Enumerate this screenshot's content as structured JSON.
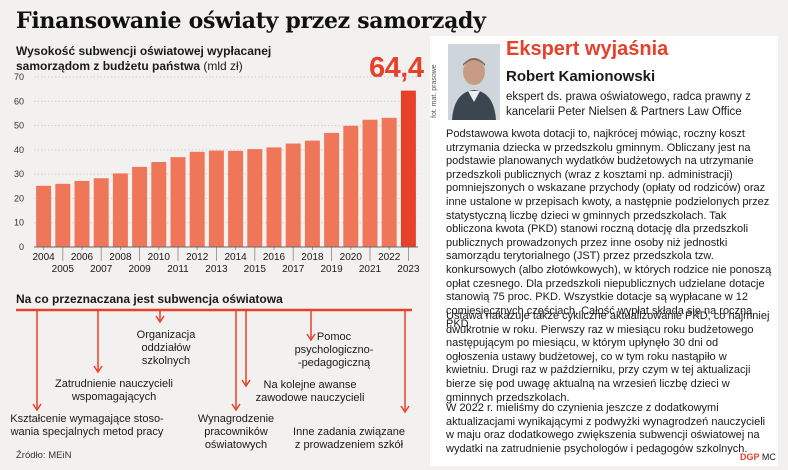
{
  "headline": "Finansowanie oświaty przez samorządy",
  "chart_title_line1": "Wysokość subwencji oświatowej wypłacanej",
  "chart_title_line2": "samorządom z budżetu państwa",
  "chart_unit": "(mld zł)",
  "highlight_value": "64,4",
  "chart_data": {
    "type": "bar",
    "title": "Wysokość subwencji oświatowej wypłacanej samorządom z budżetu państwa (mld zł)",
    "xlabel": "",
    "ylabel": "",
    "categories": [
      "2004",
      "2005",
      "2006",
      "2007",
      "2008",
      "2009",
      "2010",
      "2011",
      "2012",
      "2013",
      "2014",
      "2015",
      "2016",
      "2017",
      "2018",
      "2019",
      "2020",
      "2021",
      "2022",
      "2023"
    ],
    "values": [
      25.2,
      26.0,
      27.2,
      28.3,
      30.3,
      33.0,
      35.0,
      37.0,
      39.2,
      39.7,
      39.6,
      40.3,
      41.0,
      42.6,
      43.8,
      47.0,
      49.9,
      52.4,
      53.2,
      64.4
    ],
    "ylim": [
      0,
      70
    ],
    "yticks": [
      "0",
      "10",
      "20",
      "30",
      "40",
      "50",
      "60",
      "70"
    ],
    "grid": true,
    "bar_color": "#f0765a",
    "highlight_color": "#e8412a",
    "highlight_index": 19
  },
  "uses": {
    "title": "Na co przeznaczana jest subwencja oświatowa",
    "items": [
      {
        "lines": [
          "Kształcenie wymagające stoso-",
          "wania specjalnych metod pracy"
        ]
      },
      {
        "lines": [
          "Zatrudnienie nauczycieli",
          "wspomagających"
        ]
      },
      {
        "lines": [
          "Organizacja",
          "oddziałów",
          "szkolnych"
        ]
      },
      {
        "lines": [
          "Wynagrodzenie",
          "pracowników",
          "oświatowych"
        ]
      },
      {
        "lines": [
          "Na kolejne awanse",
          "zawodowe nauczycieli"
        ]
      },
      {
        "lines": [
          "Pomoc",
          "psychologiczno-",
          "-pedagogiczną"
        ]
      },
      {
        "lines": [
          "Inne zadania związane",
          "z prowadzeniem szkół"
        ]
      }
    ]
  },
  "source": "Źródło: MEiN",
  "expert": {
    "header": "Ekspert wyjaśnia",
    "name": "Robert Kamionowski",
    "role": "ekspert ds. prawa oświatowego, radca prawny z kancelarii Peter Nielsen & Partners Law Office",
    "photo_credit": "fot. mat. prasowe",
    "paragraphs": [
      "Podstawowa kwota dotacji to, najkrócej mówiąc, roczny koszt utrzymania dziecka w przedszkolu gminnym. Obliczany jest na podstawie planowanych wydatków budżetowych na utrzymanie przedszkoli publicznych (wraz z kosztami np. administracji) pomniejszonych o wskazane przychody (opłaty od rodziców) oraz inne ustalone w przepisach kwoty, a następnie podzielonych przez statystyczną liczbę dzieci w gminnych przedszkolach. Tak obliczona kwota (PKD) stanowi roczną dotację dla przedszkoli publicznych prowadzonych przez inne osoby niż jednostki samorządu terytorialnego (JST) przez przedszkola tzw. konkursowych (albo złotówkowych), w których rodzice nie ponoszą opłat czesnego. Dla przedszkoli niepublicznych udzielane dotacje stanowią 75 proc. PKD. Wszystkie dotacje są wypłacane w 12 comiesięcznych częściach. Całość wypłat składa się na roczną PKD.",
      "Ustawa nakazuje także cykliczne aktualizowanie PKD, co najmniej dwukrotnie w roku. Pierwszy raz w miesiącu roku budżetowego następującym po miesiącu, w którym upłynęło 30 dni od ogłoszenia ustawy budżetowej, co w tym roku nastąpiło w kwietniu. Drugi raz w październiku, przy czym w tej aktualizacji bierze się pod uwagę aktualną na wrzesień liczbę dzieci w gminnych przedszkolach.",
      "W 2022 r. mieliśmy do czynienia jeszcze z dodatkowymi aktualizacjami wynikającymi z podwyżki wynagrodzeń nauczycieli w maju oraz dodatkowego zwiększenia subwencji oświatowej na wydatki na zatrudnienie psychologów i pedagogów szkolnych."
    ]
  },
  "logo": {
    "mark": "DGP",
    "suffix": "MC"
  }
}
